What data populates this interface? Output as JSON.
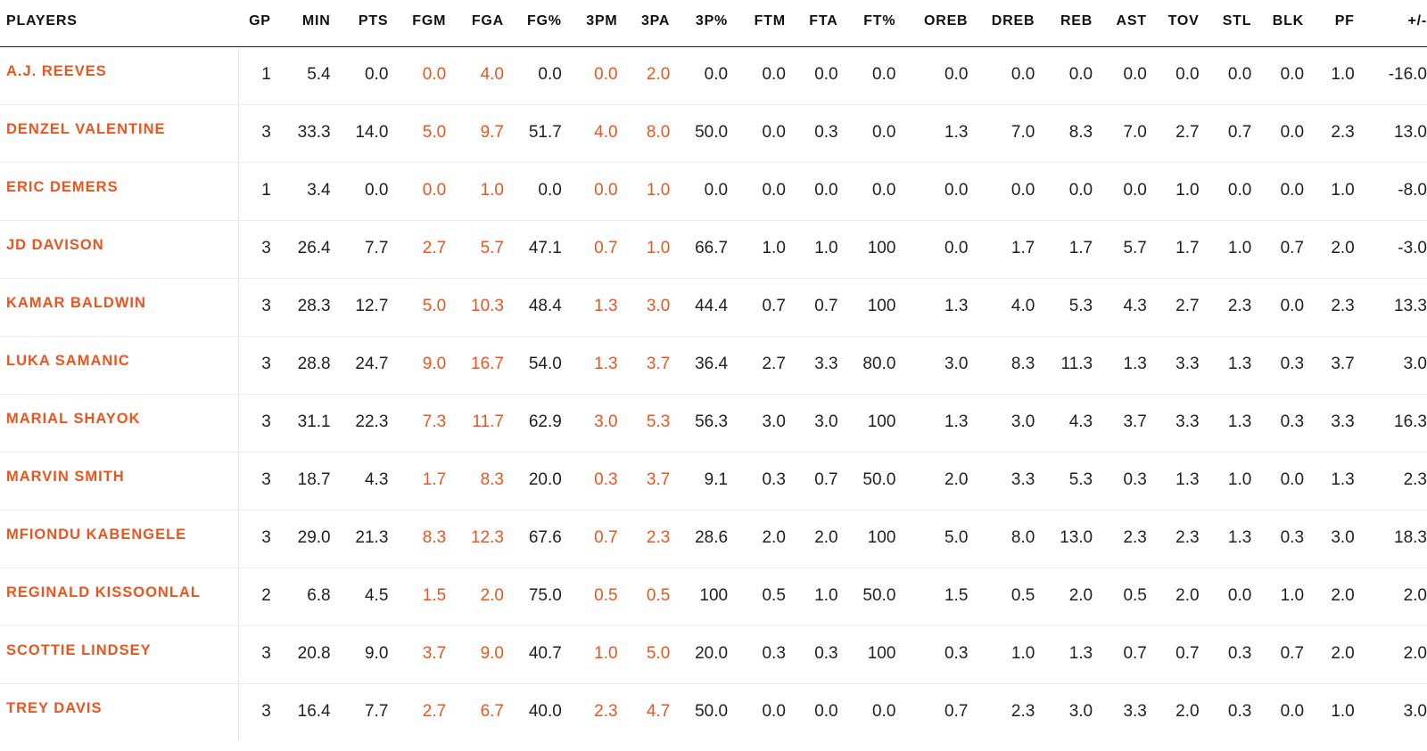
{
  "colors": {
    "accent": "#e8561f",
    "text": "#1f1f1f",
    "header_rule": "#222222",
    "row_divider": "#ececec"
  },
  "table": {
    "headers": [
      "PLAYERS",
      "GP",
      "MIN",
      "PTS",
      "FGM",
      "FGA",
      "FG%",
      "3PM",
      "3PA",
      "3P%",
      "FTM",
      "FTA",
      "FT%",
      "OREB",
      "DREB",
      "REB",
      "AST",
      "TOV",
      "STL",
      "BLK",
      "PF",
      "+/-"
    ],
    "highlight_columns": [
      4,
      5,
      7,
      8
    ],
    "rows": [
      {
        "player": "A.J. REEVES",
        "stats": [
          "1",
          "5.4",
          "0.0",
          "0.0",
          "4.0",
          "0.0",
          "0.0",
          "2.0",
          "0.0",
          "0.0",
          "0.0",
          "0.0",
          "0.0",
          "0.0",
          "0.0",
          "0.0",
          "0.0",
          "0.0",
          "0.0",
          "1.0",
          "-16.0"
        ]
      },
      {
        "player": "DENZEL VALENTINE",
        "stats": [
          "3",
          "33.3",
          "14.0",
          "5.0",
          "9.7",
          "51.7",
          "4.0",
          "8.0",
          "50.0",
          "0.0",
          "0.3",
          "0.0",
          "1.3",
          "7.0",
          "8.3",
          "7.0",
          "2.7",
          "0.7",
          "0.0",
          "2.3",
          "13.0"
        ]
      },
      {
        "player": "ERIC DEMERS",
        "stats": [
          "1",
          "3.4",
          "0.0",
          "0.0",
          "1.0",
          "0.0",
          "0.0",
          "1.0",
          "0.0",
          "0.0",
          "0.0",
          "0.0",
          "0.0",
          "0.0",
          "0.0",
          "0.0",
          "1.0",
          "0.0",
          "0.0",
          "1.0",
          "-8.0"
        ]
      },
      {
        "player": "JD DAVISON",
        "stats": [
          "3",
          "26.4",
          "7.7",
          "2.7",
          "5.7",
          "47.1",
          "0.7",
          "1.0",
          "66.7",
          "1.0",
          "1.0",
          "100",
          "0.0",
          "1.7",
          "1.7",
          "5.7",
          "1.7",
          "1.0",
          "0.7",
          "2.0",
          "-3.0"
        ]
      },
      {
        "player": "KAMAR BALDWIN",
        "stats": [
          "3",
          "28.3",
          "12.7",
          "5.0",
          "10.3",
          "48.4",
          "1.3",
          "3.0",
          "44.4",
          "0.7",
          "0.7",
          "100",
          "1.3",
          "4.0",
          "5.3",
          "4.3",
          "2.7",
          "2.3",
          "0.0",
          "2.3",
          "13.3"
        ]
      },
      {
        "player": "LUKA SAMANIC",
        "stats": [
          "3",
          "28.8",
          "24.7",
          "9.0",
          "16.7",
          "54.0",
          "1.3",
          "3.7",
          "36.4",
          "2.7",
          "3.3",
          "80.0",
          "3.0",
          "8.3",
          "11.3",
          "1.3",
          "3.3",
          "1.3",
          "0.3",
          "3.7",
          "3.0"
        ]
      },
      {
        "player": "MARIAL SHAYOK",
        "stats": [
          "3",
          "31.1",
          "22.3",
          "7.3",
          "11.7",
          "62.9",
          "3.0",
          "5.3",
          "56.3",
          "3.0",
          "3.0",
          "100",
          "1.3",
          "3.0",
          "4.3",
          "3.7",
          "3.3",
          "1.3",
          "0.3",
          "3.3",
          "16.3"
        ]
      },
      {
        "player": "MARVIN SMITH",
        "stats": [
          "3",
          "18.7",
          "4.3",
          "1.7",
          "8.3",
          "20.0",
          "0.3",
          "3.7",
          "9.1",
          "0.3",
          "0.7",
          "50.0",
          "2.0",
          "3.3",
          "5.3",
          "0.3",
          "1.3",
          "1.0",
          "0.0",
          "1.3",
          "2.3"
        ]
      },
      {
        "player": "MFIONDU KABENGELE",
        "stats": [
          "3",
          "29.0",
          "21.3",
          "8.3",
          "12.3",
          "67.6",
          "0.7",
          "2.3",
          "28.6",
          "2.0",
          "2.0",
          "100",
          "5.0",
          "8.0",
          "13.0",
          "2.3",
          "2.3",
          "1.3",
          "0.3",
          "3.0",
          "18.3"
        ]
      },
      {
        "player": "REGINALD KISSOONLAL",
        "stats": [
          "2",
          "6.8",
          "4.5",
          "1.5",
          "2.0",
          "75.0",
          "0.5",
          "0.5",
          "100",
          "0.5",
          "1.0",
          "50.0",
          "1.5",
          "0.5",
          "2.0",
          "0.5",
          "2.0",
          "0.0",
          "1.0",
          "2.0",
          "2.0"
        ]
      },
      {
        "player": "SCOTTIE LINDSEY",
        "stats": [
          "3",
          "20.8",
          "9.0",
          "3.7",
          "9.0",
          "40.7",
          "1.0",
          "5.0",
          "20.0",
          "0.3",
          "0.3",
          "100",
          "0.3",
          "1.0",
          "1.3",
          "0.7",
          "0.7",
          "0.3",
          "0.7",
          "2.0",
          "2.0"
        ]
      },
      {
        "player": "TREY DAVIS",
        "stats": [
          "3",
          "16.4",
          "7.7",
          "2.7",
          "6.7",
          "40.0",
          "2.3",
          "4.7",
          "50.0",
          "0.0",
          "0.0",
          "0.0",
          "0.7",
          "2.3",
          "3.0",
          "3.3",
          "2.0",
          "0.3",
          "0.0",
          "1.0",
          "3.0"
        ]
      }
    ]
  }
}
